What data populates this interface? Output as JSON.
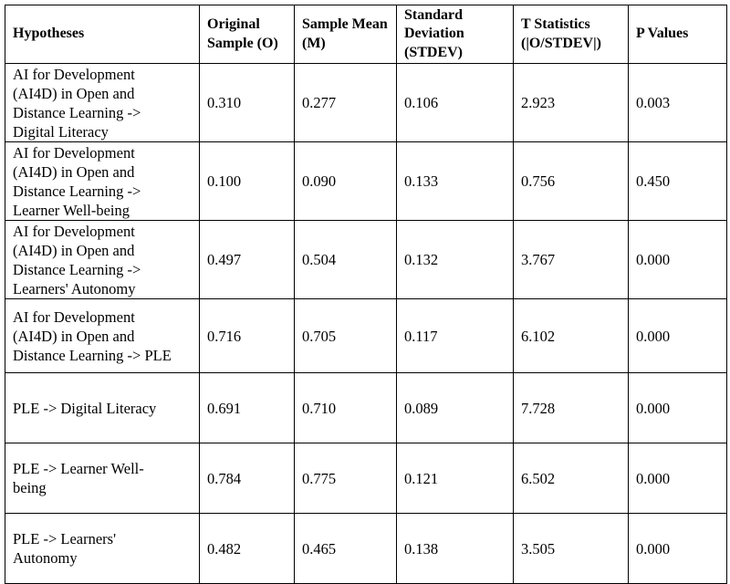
{
  "table": {
    "headers": [
      "Hypotheses",
      "Original Sample (O)",
      "Sample Mean (M)",
      "Standard Deviation (STDEV)",
      "T Statistics (|O/STDEV|)",
      "P Values"
    ],
    "rows": [
      {
        "hypothesis": "AI for Development\n(AI4D)  in Open and\nDistance Learning ->\nDigital Literacy",
        "original_sample": "0.310",
        "sample_mean": "0.277",
        "stdev": "0.106",
        "t_stat": "2.923",
        "p_value": "0.003"
      },
      {
        "hypothesis": "AI for Development\n(AI4D)  in Open and\nDistance Learning ->\nLearner Well-being",
        "original_sample": "0.100",
        "sample_mean": "0.090",
        "stdev": "0.133",
        "t_stat": "0.756",
        "p_value": "0.450"
      },
      {
        "hypothesis": "AI for Development\n(AI4D)  in Open and\nDistance Learning ->\nLearners' Autonomy",
        "original_sample": "0.497",
        "sample_mean": "0.504",
        "stdev": "0.132",
        "t_stat": "3.767",
        "p_value": "0.000"
      },
      {
        "hypothesis": "AI for Development\n(AI4D)  in Open and\nDistance Learning -> PLE",
        "original_sample": "0.716",
        "sample_mean": "0.705",
        "stdev": "0.117",
        "t_stat": "6.102",
        "p_value": "0.000"
      },
      {
        "hypothesis": "PLE -> Digital Literacy",
        "original_sample": "0.691",
        "sample_mean": "0.710",
        "stdev": "0.089",
        "t_stat": "7.728",
        "p_value": "0.000"
      },
      {
        "hypothesis": "PLE -> Learner Well-\nbeing",
        "original_sample": "0.784",
        "sample_mean": "0.775",
        "stdev": "0.121",
        "t_stat": "6.502",
        "p_value": "0.000"
      },
      {
        "hypothesis": "PLE -> Learners'\nAutonomy",
        "original_sample": "0.482",
        "sample_mean": "0.465",
        "stdev": "0.138",
        "t_stat": "3.505",
        "p_value": "0.000"
      }
    ]
  }
}
